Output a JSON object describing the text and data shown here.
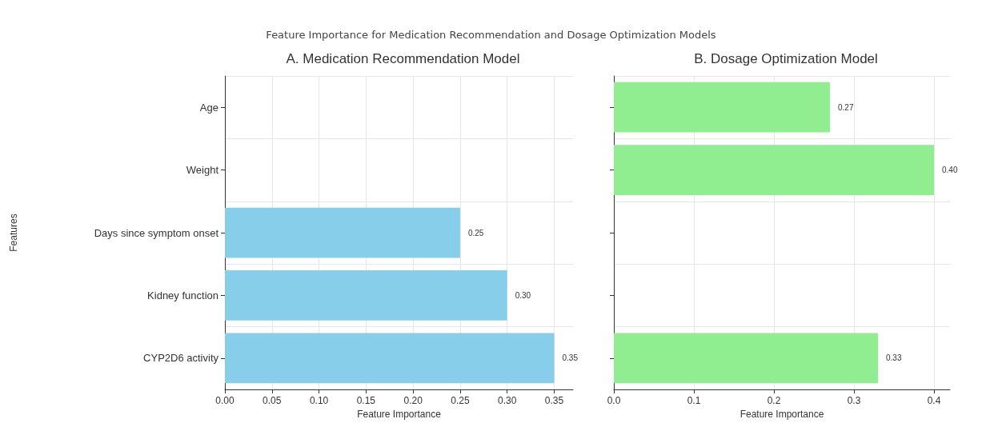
{
  "chart_data": [
    {
      "type": "bar",
      "orientation": "horizontal",
      "title": "A. Medication Recommendation Model",
      "xlabel": "Feature Importance",
      "ylabel": "Features",
      "categories": [
        "Age",
        "Weight",
        "Days since symptom onset",
        "Kidney function",
        "CYP2D6 activity"
      ],
      "values": [
        null,
        null,
        0.25,
        0.3,
        0.35
      ],
      "value_labels": [
        null,
        null,
        "0.25",
        "0.30",
        "0.35"
      ],
      "color": "#87ceeb",
      "xlim": [
        0,
        0.37
      ],
      "xticks": [
        {
          "value": 0,
          "label": "0.00"
        },
        {
          "value": 0.05,
          "label": "0.05"
        },
        {
          "value": 0.1,
          "label": "0.10"
        },
        {
          "value": 0.15,
          "label": "0.15"
        },
        {
          "value": 0.2,
          "label": "0.20"
        },
        {
          "value": 0.25,
          "label": "0.25"
        },
        {
          "value": 0.3,
          "label": "0.30"
        },
        {
          "value": 0.35,
          "label": "0.35"
        }
      ],
      "grid": true,
      "annotations": [
        "Feature Importance for Medication Recommendation and Dosage Optimization Models"
      ]
    },
    {
      "type": "bar",
      "orientation": "horizontal",
      "title": "B. Dosage Optimization Model",
      "xlabel": "Feature Importance",
      "categories": [
        null,
        null,
        null,
        null,
        null
      ],
      "values": [
        0.27,
        0.4,
        null,
        null,
        0.33
      ],
      "value_labels": [
        "0.27",
        "0.40",
        null,
        null,
        "0.33"
      ],
      "color": "#90ee90",
      "xlim": [
        0,
        0.42
      ],
      "xticks": [
        {
          "value": 0,
          "label": "0.0"
        },
        {
          "value": 0.1,
          "label": "0.1"
        },
        {
          "value": 0.2,
          "label": "0.2"
        },
        {
          "value": 0.3,
          "label": "0.3"
        },
        {
          "value": 0.4,
          "label": "0.4"
        }
      ],
      "grid": true,
      "tick_labels": "x"
    }
  ]
}
